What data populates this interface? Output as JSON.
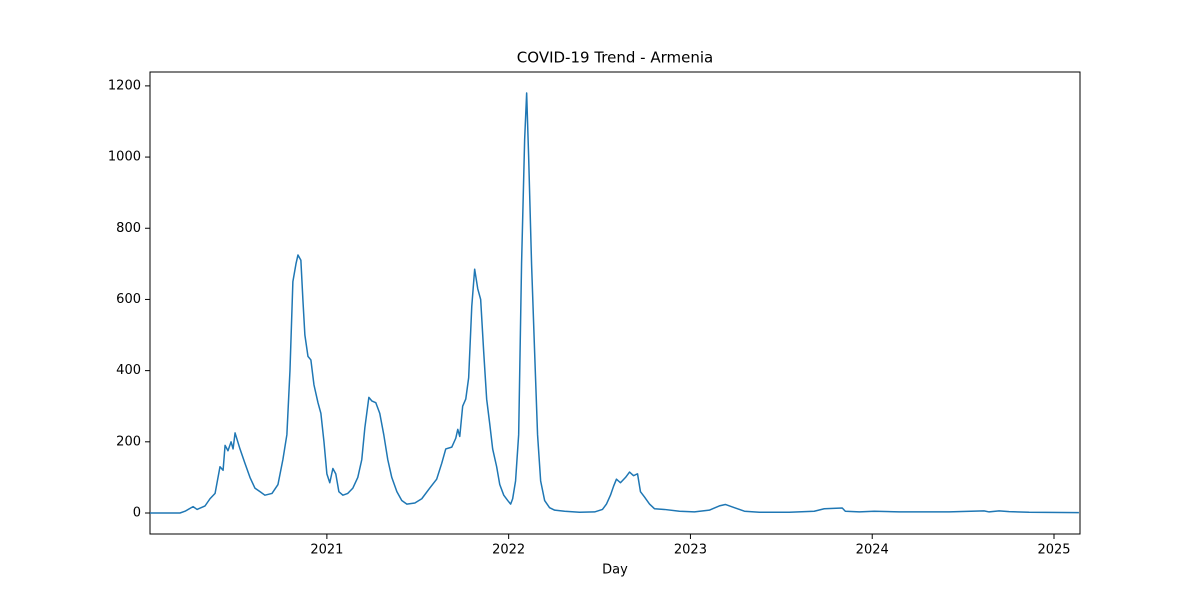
{
  "chart_data": {
    "type": "line",
    "title": "COVID-19 Trend - Armenia",
    "x_label": "Day",
    "x": [
      2020.027,
      2020.192,
      2020.22,
      2020.264,
      2020.286,
      2020.33,
      2020.357,
      2020.385,
      2020.412,
      2020.429,
      2020.44,
      2020.456,
      2020.473,
      2020.484,
      2020.495,
      2020.522,
      2020.549,
      2020.577,
      2020.604,
      2020.632,
      2020.659,
      2020.698,
      2020.731,
      2020.758,
      2020.78,
      2020.797,
      2020.813,
      2020.83,
      2020.841,
      2020.857,
      2020.868,
      2020.879,
      2020.896,
      2020.912,
      2020.929,
      2020.951,
      2020.967,
      2020.984,
      2021.0,
      2021.016,
      2021.033,
      2021.049,
      2021.066,
      2021.088,
      2021.115,
      2021.143,
      2021.17,
      2021.192,
      2021.209,
      2021.231,
      2021.247,
      2021.269,
      2021.291,
      2021.313,
      2021.335,
      2021.357,
      2021.385,
      2021.412,
      2021.44,
      2021.484,
      2021.522,
      2021.566,
      2021.604,
      2021.632,
      2021.654,
      2021.687,
      2021.709,
      2021.72,
      2021.731,
      2021.747,
      2021.764,
      2021.78,
      2021.797,
      2021.813,
      2021.83,
      2021.846,
      2021.863,
      2021.879,
      2021.896,
      2021.912,
      2021.934,
      2021.951,
      2021.973,
      2021.995,
      2022.011,
      2022.022,
      2022.038,
      2022.055,
      2022.071,
      2022.088,
      2022.099,
      2022.11,
      2022.126,
      2022.143,
      2022.159,
      2022.176,
      2022.198,
      2022.225,
      2022.253,
      2022.308,
      2022.39,
      2022.473,
      2022.516,
      2022.538,
      2022.56,
      2022.577,
      2022.593,
      2022.615,
      2022.643,
      2022.665,
      2022.687,
      2022.709,
      2022.725,
      2022.747,
      2022.775,
      2022.802,
      2022.857,
      2022.94,
      2023.022,
      2023.104,
      2023.159,
      2023.192,
      2023.242,
      2023.297,
      2023.379,
      2023.544,
      2023.681,
      2023.736,
      2023.835,
      2023.852,
      2023.929,
      2024.011,
      2024.148,
      2024.423,
      2024.615,
      2024.643,
      2024.698,
      2024.753,
      2024.863,
      2025.137
    ],
    "series": [
      {
        "name": "Armenia",
        "color": "#1f77b4",
        "values": [
          0,
          0,
          5,
          18,
          10,
          20,
          40,
          55,
          130,
          120,
          190,
          175,
          200,
          180,
          225,
          180,
          140,
          100,
          70,
          60,
          50,
          55,
          80,
          150,
          220,
          400,
          650,
          700,
          725,
          710,
          600,
          500,
          440,
          430,
          360,
          310,
          280,
          200,
          110,
          85,
          125,
          110,
          60,
          50,
          55,
          70,
          100,
          150,
          240,
          325,
          315,
          310,
          280,
          220,
          150,
          100,
          60,
          35,
          25,
          28,
          40,
          70,
          95,
          140,
          180,
          185,
          210,
          235,
          215,
          300,
          320,
          380,
          580,
          685,
          630,
          600,
          450,
          320,
          250,
          180,
          130,
          80,
          50,
          35,
          25,
          40,
          90,
          220,
          700,
          1050,
          1180,
          1000,
          700,
          450,
          220,
          90,
          35,
          15,
          8,
          5,
          2,
          3,
          10,
          25,
          50,
          75,
          95,
          85,
          100,
          115,
          105,
          110,
          60,
          45,
          25,
          12,
          10,
          5,
          3,
          8,
          20,
          24,
          15,
          5,
          2,
          2,
          5,
          12,
          14,
          5,
          3,
          5,
          3,
          3,
          6,
          3,
          6,
          4,
          2,
          1
        ]
      }
    ],
    "xlim": [
      2020.027,
      2025.143
    ],
    "xticks": [
      2021,
      2022,
      2023,
      2024,
      2025
    ],
    "ylim": [
      -59,
      1239
    ],
    "yticks": [
      0,
      200,
      400,
      600,
      800,
      1000,
      1200
    ]
  }
}
